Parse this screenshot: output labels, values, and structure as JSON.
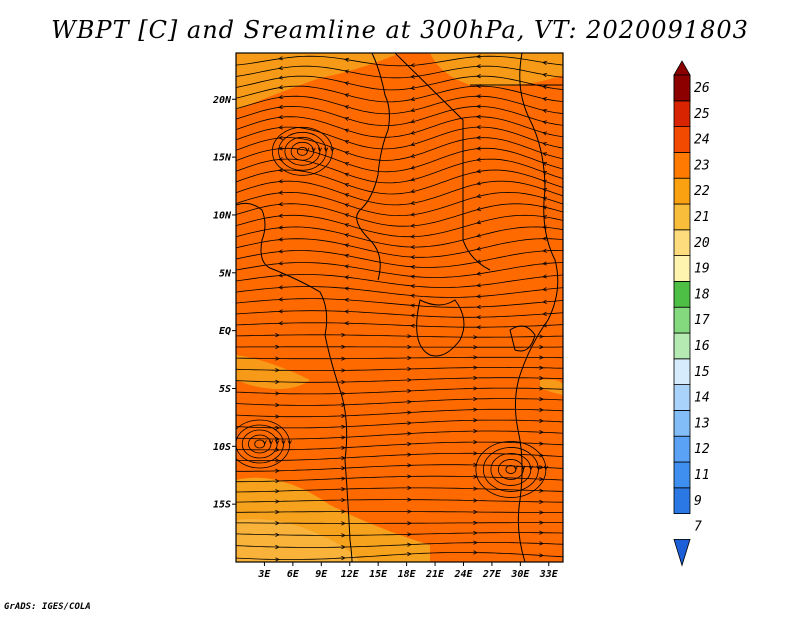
{
  "title": "WBPT [C] and Sreamline at 300hPa, VT: 2020091803",
  "credit": "GrADS: IGES/COLA",
  "map": {
    "x_ticks": [
      {
        "label": "3E",
        "lon": 3
      },
      {
        "label": "6E",
        "lon": 6
      },
      {
        "label": "9E",
        "lon": 9
      },
      {
        "label": "12E",
        "lon": 12
      },
      {
        "label": "15E",
        "lon": 15
      },
      {
        "label": "18E",
        "lon": 18
      },
      {
        "label": "21E",
        "lon": 21
      },
      {
        "label": "24E",
        "lon": 24
      },
      {
        "label": "27E",
        "lon": 27
      },
      {
        "label": "30E",
        "lon": 30
      },
      {
        "label": "33E",
        "lon": 33
      }
    ],
    "y_ticks": [
      {
        "label": "20N",
        "lat": 20
      },
      {
        "label": "15N",
        "lat": 15
      },
      {
        "label": "10N",
        "lat": 10
      },
      {
        "label": "5N",
        "lat": 5
      },
      {
        "label": "EQ",
        "lat": 0
      },
      {
        "label": "5S",
        "lat": -5
      },
      {
        "label": "10S",
        "lat": -10
      },
      {
        "label": "15S",
        "lat": -15
      }
    ],
    "lon_range": [
      0,
      34.5
    ],
    "lat_range": [
      -20,
      24
    ],
    "field_color": "#ff6a00",
    "warm_patch_color": "#ff8c1a",
    "cool_patch_color": "#f7a21c"
  },
  "colorbar": {
    "labels": [
      "7",
      "9",
      "11",
      "12",
      "13",
      "14",
      "15",
      "16",
      "17",
      "18",
      "19",
      "20",
      "21",
      "22",
      "23",
      "24",
      "25",
      "26"
    ],
    "colors": [
      "#1c5fd6",
      "#2b78e4",
      "#3e8ff0",
      "#5aa2f5",
      "#82bdf8",
      "#a9d3fb",
      "#d6ecfd",
      "#b5ebb2",
      "#84d97f",
      "#4cbf44",
      "#fff3b0",
      "#fddc7e",
      "#f9bd3c",
      "#f9a110",
      "#ff7a00",
      "#f24a00",
      "#d82400",
      "#b50d00",
      "#8c0000"
    ]
  }
}
